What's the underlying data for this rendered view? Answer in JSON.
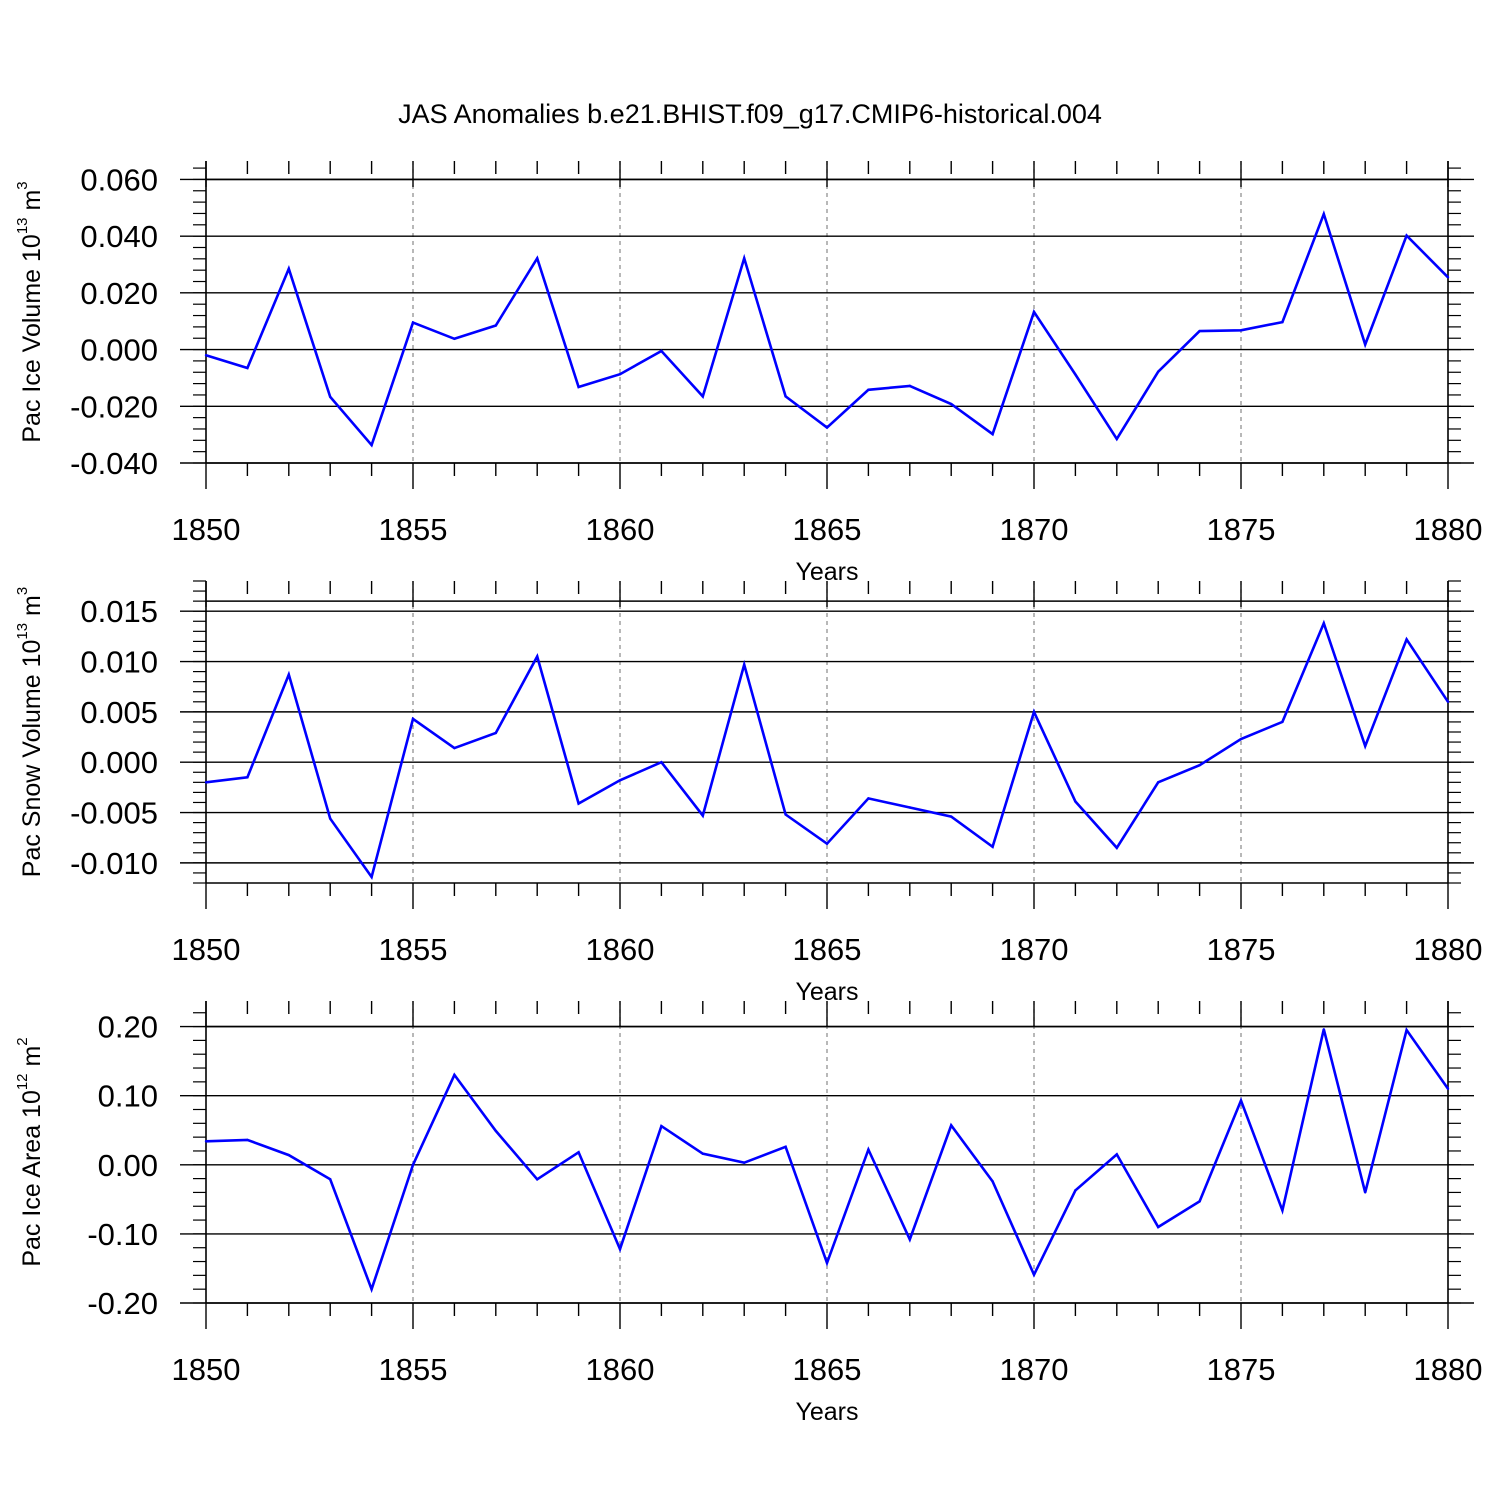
{
  "title": "JAS Anomalies b.e21.BHIST.f09_g17.CMIP6-historical.004",
  "colors": {
    "series": "#0000ff",
    "axis": "#000000",
    "grid": "#888888"
  },
  "chart_data": [
    {
      "type": "line",
      "title": "",
      "xlabel": "Years",
      "ylabel": {
        "text": "Pac Ice Volume 10",
        "exp1": "13",
        "mid": " m",
        "exp2": "3"
      },
      "xlim": [
        1850,
        1880
      ],
      "ylim": [
        -0.04,
        0.0665
      ],
      "x_ticks": [
        1850,
        1855,
        1860,
        1865,
        1870,
        1875,
        1880
      ],
      "x_tick_labels": [
        "1850",
        "1855",
        "1860",
        "1865",
        "1870",
        "1875",
        "1880"
      ],
      "y_ticks": [
        -0.04,
        -0.02,
        0.0,
        0.02,
        0.04,
        0.06
      ],
      "y_tick_labels": [
        "-0.040",
        "-0.020",
        "0.000",
        "0.020",
        "0.040",
        "0.060"
      ],
      "y_minor_step": 0.004,
      "y_box_top": 0.06,
      "x": [
        1850,
        1851,
        1852,
        1853,
        1854,
        1855,
        1856,
        1857,
        1858,
        1859,
        1860,
        1861,
        1862,
        1863,
        1864,
        1865,
        1866,
        1867,
        1868,
        1869,
        1870,
        1871,
        1872,
        1873,
        1874,
        1875,
        1876,
        1877,
        1878,
        1879,
        1880
      ],
      "series": [
        {
          "name": "Pac Ice Volume",
          "values": [
            -0.002,
            -0.0065,
            0.0285,
            -0.0167,
            -0.0337,
            0.0095,
            0.0038,
            0.0085,
            0.0322,
            -0.0132,
            -0.0087,
            -0.0005,
            -0.0165,
            0.0322,
            -0.0165,
            -0.0275,
            -0.0142,
            -0.0128,
            -0.0192,
            -0.0298,
            0.0133,
            -0.0088,
            -0.0315,
            -0.0078,
            0.0065,
            0.0068,
            0.0097,
            0.0478,
            0.0018,
            0.0402,
            0.0255
          ]
        }
      ]
    },
    {
      "type": "line",
      "title": "",
      "xlabel": "Years",
      "ylabel": {
        "text": "Pac Snow Volume 10",
        "exp1": "13",
        "mid": " m",
        "exp2": "3"
      },
      "xlim": [
        1850,
        1880
      ],
      "ylim": [
        -0.012,
        0.018
      ],
      "x_ticks": [
        1850,
        1855,
        1860,
        1865,
        1870,
        1875,
        1880
      ],
      "x_tick_labels": [
        "1850",
        "1855",
        "1860",
        "1865",
        "1870",
        "1875",
        "1880"
      ],
      "y_ticks": [
        -0.01,
        -0.005,
        0.0,
        0.005,
        0.01,
        0.015
      ],
      "y_tick_labels": [
        "-0.010",
        "-0.005",
        "0.000",
        "0.005",
        "0.010",
        "0.015"
      ],
      "y_minor_step": 0.001,
      "y_box_top": 0.016,
      "x": [
        1850,
        1851,
        1852,
        1853,
        1854,
        1855,
        1856,
        1857,
        1858,
        1859,
        1860,
        1861,
        1862,
        1863,
        1864,
        1865,
        1866,
        1867,
        1868,
        1869,
        1870,
        1871,
        1872,
        1873,
        1874,
        1875,
        1876,
        1877,
        1878,
        1879,
        1880
      ],
      "series": [
        {
          "name": "Pac Snow Volume",
          "values": [
            -0.002,
            -0.0015,
            0.0087,
            -0.0056,
            -0.0114,
            0.0043,
            0.0014,
            0.0029,
            0.0105,
            -0.0041,
            -0.0018,
            0.0,
            -0.0053,
            0.0097,
            -0.0052,
            -0.0081,
            -0.0036,
            -0.0045,
            -0.0054,
            -0.0084,
            0.005,
            -0.0039,
            -0.0085,
            -0.002,
            -0.0003,
            0.0023,
            0.004,
            0.0138,
            0.0016,
            0.0122,
            0.006
          ]
        }
      ]
    },
    {
      "type": "line",
      "title": "",
      "xlabel": "Years",
      "ylabel": {
        "text": "Pac Ice Area 10",
        "exp1": "12",
        "mid": " m",
        "exp2": "2"
      },
      "xlim": [
        1850,
        1880
      ],
      "ylim": [
        -0.2,
        0.237
      ],
      "x_ticks": [
        1850,
        1855,
        1860,
        1865,
        1870,
        1875,
        1880
      ],
      "x_tick_labels": [
        "1850",
        "1855",
        "1860",
        "1865",
        "1870",
        "1875",
        "1880"
      ],
      "y_ticks": [
        -0.2,
        -0.1,
        0.0,
        0.1,
        0.2
      ],
      "y_tick_labels": [
        "-0.20",
        "-0.10",
        "0.00",
        "0.10",
        "0.20"
      ],
      "y_minor_step": 0.02,
      "y_box_top": 0.2,
      "x": [
        1850,
        1851,
        1852,
        1853,
        1854,
        1855,
        1856,
        1857,
        1858,
        1859,
        1860,
        1861,
        1862,
        1863,
        1864,
        1865,
        1866,
        1867,
        1868,
        1869,
        1870,
        1871,
        1872,
        1873,
        1874,
        1875,
        1876,
        1877,
        1878,
        1879,
        1880
      ],
      "series": [
        {
          "name": "Pac Ice Area",
          "values": [
            0.034,
            0.036,
            0.014,
            -0.021,
            -0.18,
            0.0,
            0.13,
            0.049,
            -0.021,
            0.018,
            -0.122,
            0.056,
            0.016,
            0.003,
            0.026,
            -0.142,
            0.022,
            -0.108,
            0.057,
            -0.024,
            -0.159,
            -0.037,
            0.015,
            -0.09,
            -0.053,
            0.093,
            -0.066,
            0.196,
            -0.04,
            0.195,
            0.11
          ]
        }
      ]
    }
  ]
}
